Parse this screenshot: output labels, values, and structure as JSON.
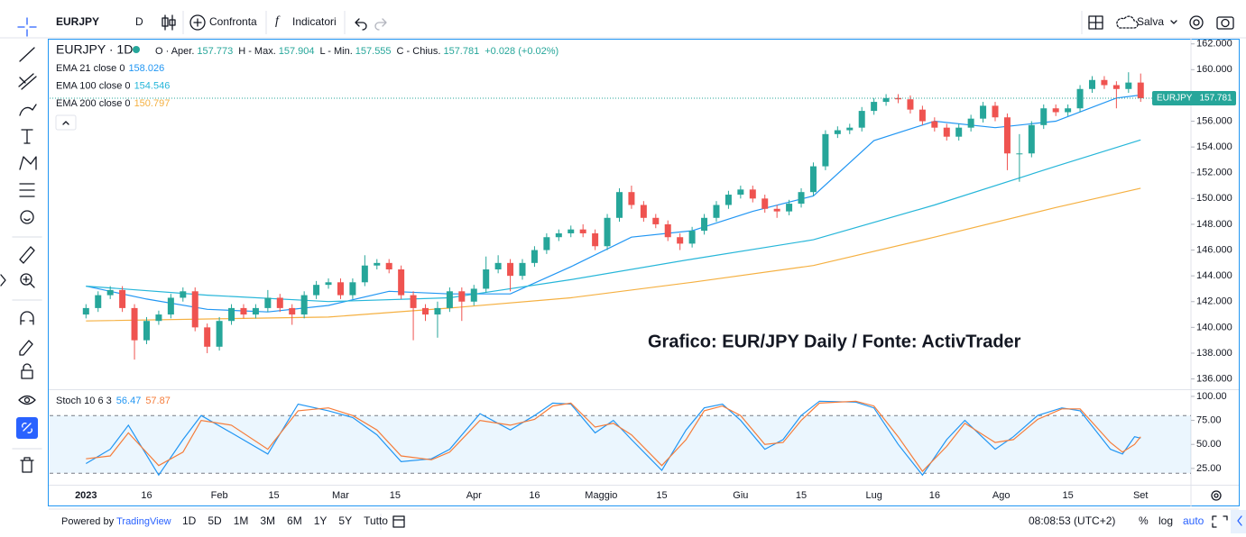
{
  "toolbar": {
    "symbol": "EURJPY",
    "interval": "D",
    "compare": "Confronta",
    "indicators": "Indicatori",
    "save": "Salva"
  },
  "legend": {
    "title": "EURJPY · 1D",
    "ohlc": [
      {
        "label": "O · Aper.",
        "value": 157.773
      },
      {
        "label": "H - Max.",
        "value": 157.904
      },
      {
        "label": "L - Min.",
        "value": 157.555
      },
      {
        "label": "C - Chius.",
        "value": 157.781
      }
    ],
    "change": "+0.028 (+0.02%)"
  },
  "chart_data": [
    {
      "type": "candlestick",
      "annotation": "Grafico: EUR/JPY Daily / Fonte: ActivTrader",
      "up_color": "#26a69a",
      "down_color": "#ef5350",
      "grid": false,
      "x": [
        0,
        2,
        4,
        6,
        8,
        10,
        12,
        14,
        16,
        18,
        20,
        22,
        24,
        26,
        28,
        30,
        32,
        34,
        36,
        38,
        40,
        42,
        44,
        46,
        48,
        50,
        52,
        54,
        56,
        58,
        60,
        62,
        64,
        66,
        68,
        70,
        72,
        74,
        76,
        78,
        80,
        82,
        84,
        86,
        88,
        90,
        92,
        94,
        96,
        98,
        100,
        102,
        104,
        106,
        108,
        110,
        112,
        114,
        116,
        118,
        120,
        122,
        124,
        126,
        128,
        130,
        132,
        134,
        136,
        138,
        140,
        142,
        144,
        146,
        148,
        150,
        152,
        154,
        156,
        158,
        160,
        162,
        164,
        166,
        168,
        170,
        172,
        174
      ],
      "open": [
        141.0,
        141.5,
        142.5,
        142.9,
        141.5,
        139.0,
        140.5,
        141.0,
        142.3,
        142.8,
        140.0,
        138.5,
        140.5,
        141.5,
        141.0,
        141.5,
        142.3,
        141.5,
        141.0,
        142.5,
        143.3,
        143.5,
        142.5,
        143.5,
        144.8,
        145.0,
        144.5,
        142.5,
        141.5,
        141.0,
        141.5,
        142.8,
        142.0,
        143.0,
        144.5,
        145.0,
        144.0,
        145.0,
        146.0,
        147.0,
        147.3,
        147.6,
        147.3,
        146.3,
        148.5,
        150.5,
        149.5,
        148.5,
        148.0,
        147.0,
        146.5,
        147.5,
        148.5,
        149.5,
        150.3,
        150.7,
        150.0,
        149.2,
        149.0,
        149.6,
        150.5,
        152.5,
        155.0,
        155.3,
        155.5,
        156.8,
        157.5,
        157.8,
        157.7,
        156.9,
        156.0,
        155.5,
        154.8,
        155.5,
        156.2,
        157.2,
        156.3,
        153.5,
        153.5,
        155.7,
        157.0,
        156.7,
        157.0,
        158.5,
        159.2,
        158.8,
        158.5,
        159.0
      ],
      "high": [
        141.8,
        142.8,
        143.2,
        143.2,
        141.8,
        140.8,
        141.3,
        142.6,
        143.1,
        143.1,
        140.3,
        140.8,
        141.8,
        141.8,
        141.8,
        142.9,
        142.6,
        141.8,
        142.8,
        143.6,
        143.8,
        143.8,
        143.8,
        145.6,
        145.3,
        145.3,
        144.8,
        142.8,
        141.8,
        142.0,
        143.1,
        143.1,
        143.3,
        145.5,
        145.6,
        145.3,
        145.3,
        146.3,
        147.3,
        147.6,
        147.9,
        148.0,
        147.6,
        148.8,
        150.8,
        151.0,
        149.8,
        148.8,
        148.3,
        147.3,
        147.8,
        148.8,
        149.8,
        150.6,
        151.0,
        151.0,
        150.3,
        149.5,
        149.9,
        150.8,
        152.8,
        155.3,
        155.6,
        155.8,
        157.1,
        157.8,
        158.1,
        158.1,
        158.0,
        157.2,
        156.3,
        155.8,
        155.8,
        156.5,
        157.5,
        157.5,
        156.6,
        155.0,
        156.0,
        157.3,
        157.3,
        157.3,
        158.8,
        159.5,
        159.5,
        159.1,
        159.8,
        159.7
      ],
      "low": [
        140.7,
        141.2,
        142.2,
        141.2,
        137.5,
        138.7,
        140.2,
        140.7,
        142.0,
        139.7,
        138.0,
        138.2,
        140.2,
        140.7,
        140.7,
        141.2,
        141.2,
        140.2,
        140.7,
        142.2,
        143.0,
        142.2,
        142.2,
        143.2,
        144.5,
        144.2,
        142.2,
        139.0,
        140.5,
        139.2,
        141.2,
        140.5,
        141.7,
        142.7,
        144.2,
        142.8,
        143.7,
        144.7,
        145.7,
        146.7,
        147.0,
        147.0,
        146.0,
        146.0,
        148.2,
        149.2,
        148.2,
        147.7,
        146.7,
        146.0,
        146.2,
        147.2,
        148.2,
        149.2,
        150.0,
        149.7,
        148.9,
        148.5,
        148.7,
        149.3,
        150.2,
        152.2,
        154.7,
        155.0,
        155.2,
        156.5,
        157.2,
        157.4,
        156.6,
        155.7,
        155.2,
        154.5,
        154.5,
        155.2,
        155.9,
        156.0,
        152.2,
        151.3,
        153.2,
        155.4,
        156.4,
        156.4,
        156.7,
        158.2,
        158.5,
        157.0,
        158.2,
        157.5
      ],
      "close": [
        141.5,
        142.5,
        142.9,
        141.5,
        139.0,
        140.5,
        141.0,
        142.3,
        142.8,
        140.0,
        138.5,
        140.5,
        141.5,
        141.0,
        141.5,
        142.3,
        141.5,
        141.0,
        142.5,
        143.3,
        143.5,
        142.5,
        143.5,
        144.8,
        145.0,
        144.5,
        142.5,
        141.5,
        141.0,
        141.5,
        142.8,
        142.0,
        143.0,
        144.5,
        145.0,
        144.0,
        145.0,
        146.0,
        147.0,
        147.3,
        147.6,
        147.3,
        146.3,
        148.5,
        150.5,
        149.5,
        148.5,
        148.0,
        147.0,
        146.5,
        147.5,
        148.5,
        149.5,
        150.3,
        150.7,
        150.0,
        149.2,
        149.0,
        149.6,
        150.5,
        152.5,
        155.0,
        155.3,
        155.5,
        156.8,
        157.5,
        157.8,
        157.7,
        156.9,
        156.0,
        155.5,
        154.8,
        155.5,
        156.2,
        157.2,
        156.3,
        153.5,
        153.5,
        155.7,
        157.0,
        156.7,
        157.0,
        158.5,
        159.2,
        158.8,
        158.5,
        159.0,
        157.78
      ],
      "series": [
        {
          "name": "EMA 21 close 0",
          "last_value": 158.026,
          "color": "#2196f3",
          "x": [
            0,
            10,
            20,
            30,
            40,
            50,
            60,
            70,
            80,
            90,
            100,
            110,
            120,
            130,
            140,
            150,
            160,
            170,
            174
          ],
          "values": [
            143.2,
            142.2,
            141.4,
            141.2,
            141.7,
            142.8,
            142.6,
            142.6,
            144.7,
            147.0,
            147.5,
            149.0,
            150.2,
            154.5,
            156.0,
            155.5,
            156.0,
            157.8,
            158.03
          ]
        },
        {
          "name": "EMA 100 close 0",
          "last_value": 154.546,
          "color": "#26b6d9",
          "x": [
            0,
            20,
            40,
            60,
            80,
            100,
            120,
            140,
            160,
            174
          ],
          "values": [
            143.2,
            142.5,
            142.0,
            142.3,
            143.7,
            145.3,
            146.8,
            149.5,
            152.5,
            154.55
          ]
        },
        {
          "name": "EMA 200 close 0",
          "last_value": 150.797,
          "color": "#f5b041",
          "x": [
            0,
            40,
            60,
            80,
            100,
            120,
            140,
            160,
            174
          ],
          "values": [
            140.5,
            140.8,
            141.5,
            142.3,
            143.5,
            144.8,
            147.0,
            149.3,
            150.8
          ]
        }
      ],
      "price_line": {
        "name": "EURJPY",
        "value": 157.781
      },
      "xlim": [
        -6,
        182.3
      ],
      "ylim": [
        135.2,
        162.4
      ],
      "xticks": [
        {
          "value": 0,
          "label": "2023"
        },
        {
          "value": 10,
          "label": "16"
        },
        {
          "value": 22,
          "label": "Feb"
        },
        {
          "value": 31,
          "label": "15"
        },
        {
          "value": 42,
          "label": "Mar"
        },
        {
          "value": 51,
          "label": "15"
        },
        {
          "value": 64,
          "label": "Apr"
        },
        {
          "value": 74,
          "label": "16"
        },
        {
          "value": 85,
          "label": "Maggio"
        },
        {
          "value": 95,
          "label": "15"
        },
        {
          "value": 108,
          "label": "Giu"
        },
        {
          "value": 118,
          "label": "15"
        },
        {
          "value": 130,
          "label": "Lug"
        },
        {
          "value": 140,
          "label": "16"
        },
        {
          "value": 151,
          "label": "Ago"
        },
        {
          "value": 162,
          "label": "15"
        },
        {
          "value": 174,
          "label": "Set"
        }
      ],
      "yticks": [
        {
          "value": 136,
          "label": "136.000"
        },
        {
          "value": 138,
          "label": "138.000"
        },
        {
          "value": 140,
          "label": "140.000"
        },
        {
          "value": 142,
          "label": "142.000"
        },
        {
          "value": 144,
          "label": "144.000"
        },
        {
          "value": 146,
          "label": "146.000"
        },
        {
          "value": 148,
          "label": "148.000"
        },
        {
          "value": 150,
          "label": "150.000"
        },
        {
          "value": 152,
          "label": "152.000"
        },
        {
          "value": 154,
          "label": "154.000"
        },
        {
          "value": 156,
          "label": "156.000"
        },
        {
          "value": 158,
          "label": "158.000"
        },
        {
          "value": 160,
          "label": "160.000"
        },
        {
          "value": 162,
          "label": "162.000"
        }
      ]
    },
    {
      "type": "line",
      "title": "Stoch 10 6 3",
      "bands": [
        80,
        20
      ],
      "band_fill": "rgba(33,150,243,0.09)",
      "series": [
        {
          "last_value": 56.47,
          "color": "#2196f3",
          "x": [
            0,
            4,
            7,
            12,
            16,
            19,
            24,
            30,
            35,
            40,
            44,
            48,
            52,
            57,
            60,
            65,
            70,
            74,
            77,
            80,
            84,
            87,
            90,
            95,
            99,
            102,
            105,
            108,
            112,
            115,
            118,
            121,
            127,
            130,
            134,
            138,
            142,
            145,
            150,
            153,
            157,
            161,
            164,
            169,
            171,
            173,
            174
          ],
          "values": [
            30,
            45,
            70,
            18,
            55,
            80,
            62,
            40,
            92,
            85,
            78,
            60,
            32,
            35,
            45,
            82,
            65,
            80,
            93,
            92,
            62,
            75,
            55,
            23,
            65,
            88,
            92,
            75,
            45,
            55,
            80,
            95,
            94,
            88,
            50,
            18,
            55,
            75,
            45,
            58,
            80,
            88,
            85,
            45,
            40,
            58,
            56.47
          ]
        },
        {
          "last_value": 57.87,
          "color": "#f57c3a",
          "x": [
            0,
            4,
            7,
            12,
            16,
            19,
            24,
            30,
            35,
            40,
            44,
            48,
            52,
            57,
            60,
            65,
            70,
            74,
            77,
            80,
            84,
            87,
            90,
            95,
            99,
            102,
            105,
            108,
            112,
            115,
            118,
            121,
            127,
            130,
            134,
            138,
            142,
            145,
            150,
            153,
            157,
            161,
            164,
            169,
            171,
            173,
            174
          ],
          "values": [
            35,
            38,
            62,
            28,
            42,
            75,
            70,
            45,
            85,
            88,
            80,
            65,
            38,
            34,
            42,
            75,
            70,
            76,
            90,
            93,
            68,
            72,
            60,
            28,
            55,
            85,
            90,
            80,
            50,
            52,
            75,
            93,
            95,
            90,
            58,
            22,
            48,
            72,
            52,
            55,
            76,
            87,
            87,
            52,
            42,
            50,
            57.87
          ]
        }
      ],
      "xlim": [
        -6,
        182.3
      ],
      "ylim": [
        8,
        106.5
      ],
      "yticks": [
        {
          "value": 25,
          "label": "25.00"
        },
        {
          "value": 50,
          "label": "50.00"
        },
        {
          "value": 75,
          "label": "75.00"
        },
        {
          "value": 100,
          "label": "100.00"
        }
      ]
    }
  ],
  "bottom_bar": {
    "powered_by": "Powered by",
    "brand": "TradingView",
    "ranges": [
      "1D",
      "5D",
      "1M",
      "3M",
      "6M",
      "1Y",
      "5Y",
      "Tutto"
    ],
    "clock": "08:08:53 (UTC+2)",
    "percent": "%",
    "log": "log",
    "auto": "auto"
  }
}
